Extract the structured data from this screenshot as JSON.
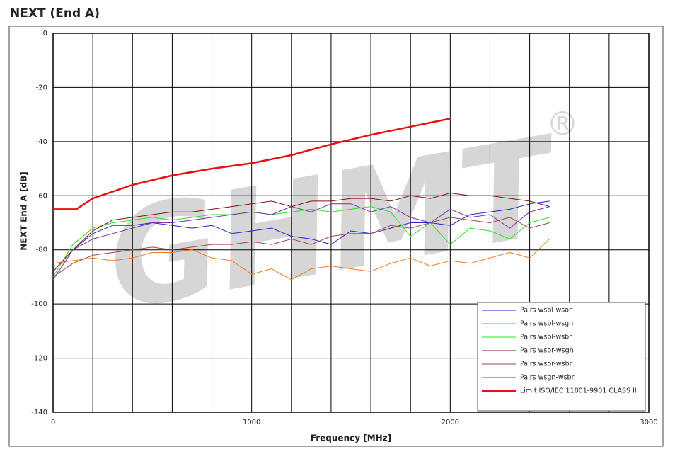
{
  "chart_data": {
    "type": "line",
    "title": "NEXT (End A)",
    "watermark": "GHMT",
    "watermark_mark": "®",
    "x_label": "Frequency [MHz]",
    "y_label": "NEXT End A [dB]",
    "xlim": [
      0,
      3000
    ],
    "ylim": [
      -140,
      0
    ],
    "xticks": [
      0,
      1000,
      2000,
      3000
    ],
    "x_minor_ticks": [
      200,
      400,
      600,
      800,
      1200,
      1400,
      1600,
      1800,
      2200,
      2400,
      2600,
      2800
    ],
    "yticks": [
      0,
      -20,
      -40,
      -60,
      -80,
      -100,
      -120,
      -140
    ],
    "grid": true,
    "legend": "lower right",
    "x": [
      0,
      100,
      200,
      300,
      400,
      500,
      600,
      700,
      800,
      900,
      1000,
      1100,
      1200,
      1300,
      1400,
      1500,
      1600,
      1700,
      1800,
      1900,
      2000,
      2100,
      2200,
      2300,
      2400,
      2500
    ],
    "series": [
      {
        "name": "Pairs wsbl-wsor",
        "color": "#2323d2",
        "values": [
          -88,
          -80,
          -74,
          -71,
          -71,
          -70,
          -71,
          -72,
          -71,
          -74,
          -73,
          -72,
          -75,
          -76,
          -78,
          -73,
          -74,
          -72,
          -70,
          -70,
          -71,
          -67,
          -66,
          -65,
          -63,
          -62
        ]
      },
      {
        "name": "Pairs wsbl-wsgn",
        "color": "#f07820",
        "values": [
          -85,
          -84,
          -83,
          -84,
          -83,
          -81,
          -81,
          -80,
          -83,
          -84,
          -89,
          -87,
          -91,
          -87,
          -86,
          -87,
          -88,
          -85,
          -83,
          -86,
          -84,
          -85,
          -83,
          -81,
          -83,
          -76
        ]
      },
      {
        "name": "Pairs wsbl-wsbr",
        "color": "#28e028",
        "values": [
          -90,
          -78,
          -72,
          -70,
          -69,
          -68,
          -69,
          -68,
          -67,
          -67,
          -66,
          -67,
          -66,
          -65,
          -66,
          -65,
          -64,
          -66,
          -75,
          -70,
          -78,
          -72,
          -73,
          -76,
          -70,
          -68
        ]
      },
      {
        "name": "Pairs wsor-wsgn",
        "color": "#801414",
        "values": [
          -88,
          -80,
          -73,
          -69,
          -68,
          -67,
          -66,
          -66,
          -65,
          -64,
          -63,
          -62,
          -64,
          -62,
          -62,
          -61,
          -61,
          -62,
          -60,
          -61,
          -59,
          -60,
          -60,
          -61,
          -62,
          -64
        ]
      },
      {
        "name": "Pairs wsor-wsbr",
        "color": "#a04848",
        "values": [
          -90,
          -85,
          -82,
          -81,
          -80,
          -79,
          -80,
          -79,
          -78,
          -78,
          -77,
          -78,
          -76,
          -78,
          -75,
          -74,
          -74,
          -71,
          -72,
          -70,
          -68,
          -69,
          -70,
          -68,
          -72,
          -70
        ]
      },
      {
        "name": "Pairs wsgn-wsbr",
        "color": "#7434a8",
        "values": [
          -91,
          -80,
          -76,
          -74,
          -72,
          -70,
          -70,
          -69,
          -68,
          -67,
          -66,
          -67,
          -64,
          -66,
          -63,
          -63,
          -66,
          -64,
          -68,
          -70,
          -65,
          -68,
          -67,
          -72,
          -66,
          -64
        ]
      },
      {
        "name": "Limit ISO/IEC 11801-9901  CLASS II",
        "color": "#e81010",
        "width": 2.5,
        "x": [
          0,
          117,
          200,
          400,
          600,
          800,
          1000,
          1200,
          1400,
          1600,
          1800,
          2000
        ],
        "values": [
          -65,
          -65,
          -61,
          -56,
          -52.5,
          -50,
          -48,
          -45,
          -41,
          -37.5,
          -34.5,
          -31.5
        ]
      }
    ]
  }
}
